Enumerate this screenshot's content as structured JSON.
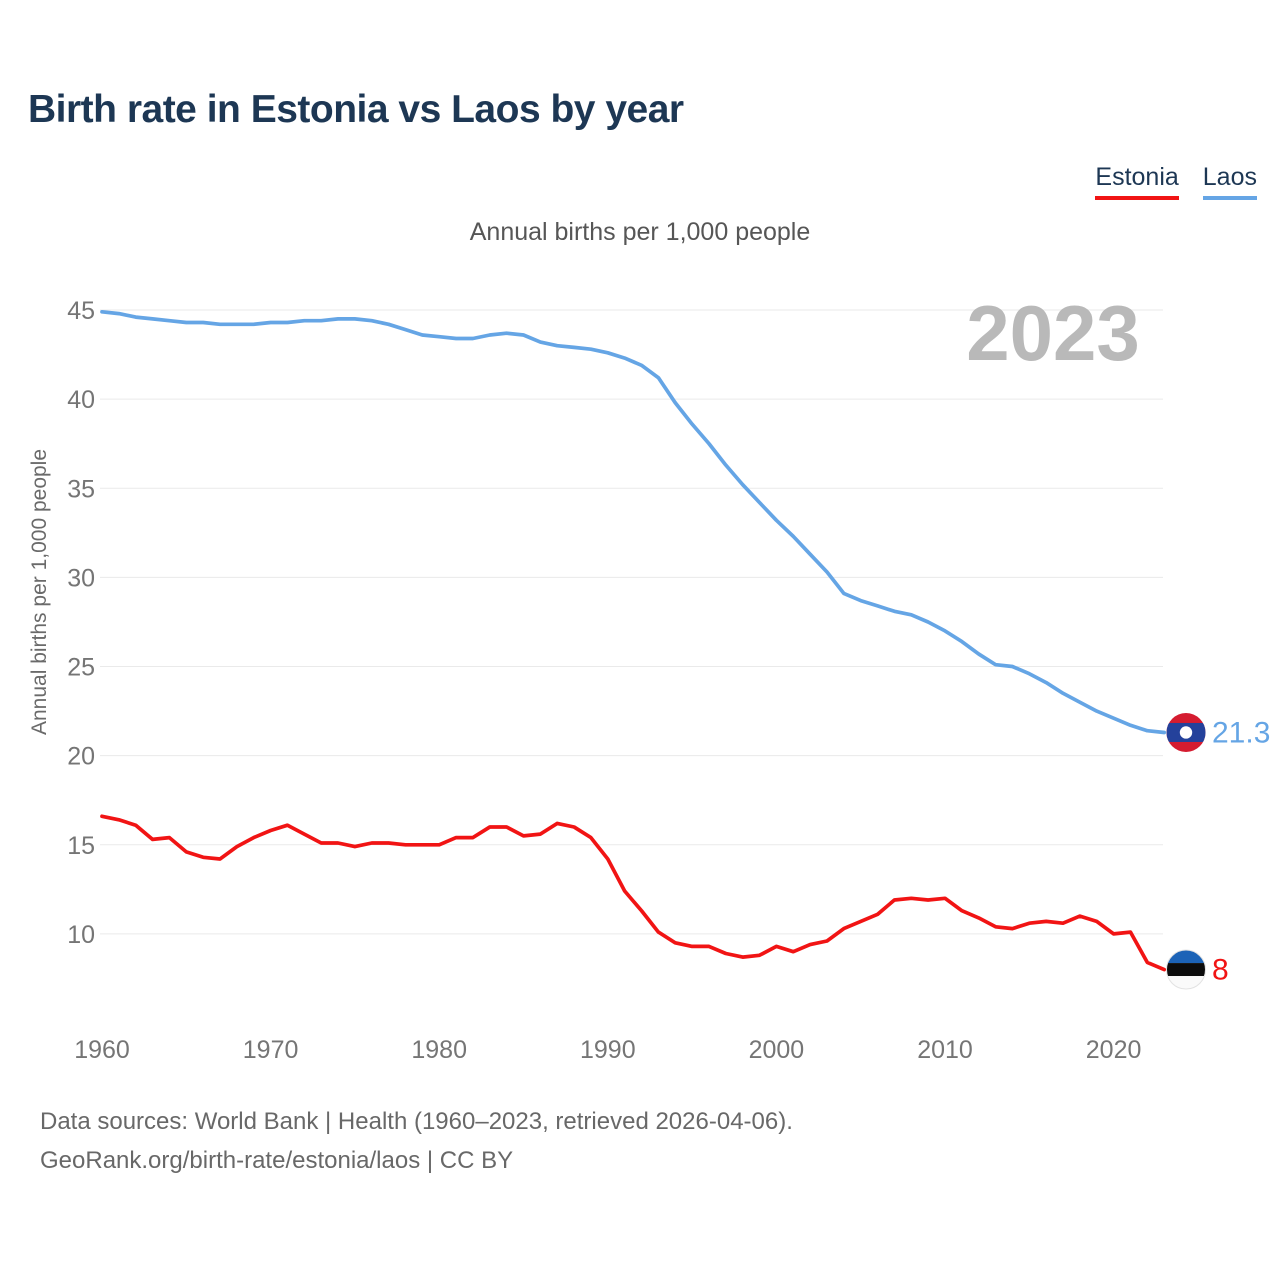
{
  "header": {
    "title": "Birth rate in Estonia vs Laos by year"
  },
  "legend": [
    {
      "label": "Estonia",
      "color": "#f11414"
    },
    {
      "label": "Laos",
      "color": "#65a5e5"
    }
  ],
  "subtitle": "Annual births per 1,000 people",
  "watermark": "2023",
  "footer": {
    "line1": "Data sources: World Bank | Health (1960–2023, retrieved 2026-04-06).",
    "line2": "GeoRank.org/birth-rate/estonia/laos | CC BY"
  },
  "chart_data": {
    "type": "line",
    "title": "Birth rate in Estonia vs Laos by year",
    "xlabel": "",
    "ylabel": "Annual births per 1,000 people",
    "x_range": [
      1960,
      2023
    ],
    "x_ticks": [
      1960,
      1970,
      1980,
      1990,
      2000,
      2010,
      2020
    ],
    "y_ticks": [
      10,
      15,
      20,
      25,
      30,
      35,
      40,
      45
    ],
    "ylim": [
      7,
      46
    ],
    "grid": true,
    "grid_color": "#eaeaea",
    "legend_position": "top-right",
    "series": [
      {
        "name": "Laos",
        "color": "#65a5e5",
        "end_label": "21.3",
        "flag": "laos-flag-icon",
        "values": [
          44.9,
          44.8,
          44.6,
          44.5,
          44.4,
          44.3,
          44.3,
          44.2,
          44.2,
          44.2,
          44.3,
          44.3,
          44.4,
          44.4,
          44.5,
          44.5,
          44.4,
          44.2,
          43.9,
          43.6,
          43.5,
          43.4,
          43.4,
          43.6,
          43.7,
          43.6,
          43.2,
          43.0,
          42.9,
          42.8,
          42.6,
          42.3,
          41.9,
          41.2,
          39.8,
          38.6,
          37.5,
          36.3,
          35.2,
          34.2,
          33.2,
          32.3,
          31.3,
          30.3,
          29.1,
          28.7,
          28.4,
          28.1,
          27.9,
          27.5,
          27.0,
          26.4,
          25.7,
          25.1,
          25.0,
          24.6,
          24.1,
          23.5,
          23.0,
          22.5,
          22.1,
          21.7,
          21.4,
          21.3
        ]
      },
      {
        "name": "Estonia",
        "color": "#f11414",
        "end_label": "8",
        "flag": "estonia-flag-icon",
        "values": [
          16.6,
          16.4,
          16.1,
          15.3,
          15.4,
          14.6,
          14.3,
          14.2,
          14.9,
          15.4,
          15.8,
          16.1,
          15.6,
          15.1,
          15.1,
          14.9,
          15.1,
          15.1,
          15.0,
          15.0,
          15.0,
          15.4,
          15.4,
          16.0,
          16.0,
          15.5,
          15.6,
          16.2,
          16.0,
          15.4,
          14.2,
          12.4,
          11.3,
          10.1,
          9.5,
          9.3,
          9.3,
          8.9,
          8.7,
          8.8,
          9.3,
          9.0,
          9.4,
          9.6,
          10.3,
          10.7,
          11.1,
          11.9,
          12.0,
          11.9,
          12.0,
          11.3,
          10.9,
          10.4,
          10.3,
          10.6,
          10.7,
          10.6,
          11.0,
          10.7,
          10.0,
          10.1,
          8.4,
          8.0
        ]
      }
    ]
  }
}
